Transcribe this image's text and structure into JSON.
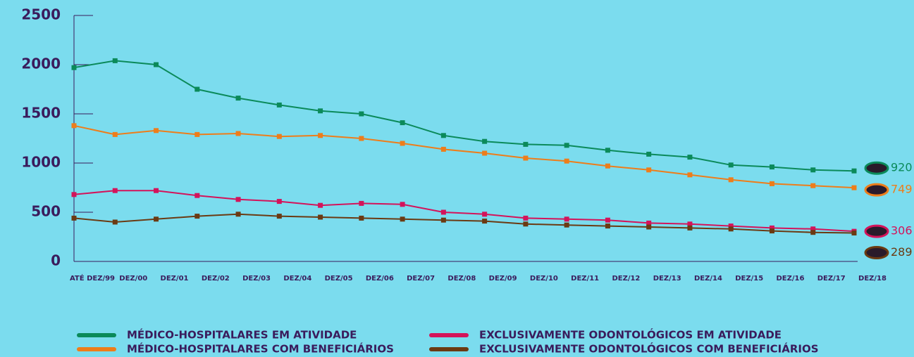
{
  "chart_data": {
    "type": "line",
    "categories": [
      "ATÉ DEZ/99",
      "DEZ/00",
      "DEZ/01",
      "DEZ/02",
      "DEZ/03",
      "DEZ/04",
      "DEZ/05",
      "DEZ/06",
      "DEZ/07",
      "DEZ/08",
      "DEZ/09",
      "DEZ/10",
      "DEZ/11",
      "DEZ/12",
      "DEZ/13",
      "DEZ/14",
      "DEZ/15",
      "DEZ/16",
      "DEZ/17",
      "DEZ/18"
    ],
    "series": [
      {
        "name": "MÉDICO-HOSPITALARES EM ATIVIDADE",
        "color": "#0b8a5a",
        "values": [
          1970,
          2040,
          2000,
          1750,
          1660,
          1590,
          1530,
          1500,
          1410,
          1280,
          1220,
          1190,
          1180,
          1130,
          1090,
          1060,
          980,
          960,
          930,
          920
        ]
      },
      {
        "name": "MÉDICO-HOSPITALARES COM BENEFICIÁRIOS",
        "color": "#ee7d1a",
        "values": [
          1380,
          1290,
          1330,
          1290,
          1300,
          1270,
          1280,
          1250,
          1200,
          1140,
          1100,
          1050,
          1020,
          970,
          930,
          880,
          830,
          790,
          770,
          749
        ]
      },
      {
        "name": "EXCLUSIVAMENTE ODONTOLÓGICOS EM ATIVIDADE",
        "color": "#d4135a",
        "values": [
          680,
          720,
          720,
          670,
          630,
          610,
          570,
          590,
          580,
          500,
          480,
          440,
          430,
          420,
          390,
          380,
          360,
          340,
          330,
          306
        ]
      },
      {
        "name": "EXCLUSIVAMENTE ODONTOLÓGICOS COM BENEFICIÁRIOS",
        "color": "#6b3a12",
        "values": [
          440,
          400,
          430,
          460,
          480,
          460,
          450,
          440,
          430,
          420,
          410,
          380,
          370,
          360,
          350,
          340,
          330,
          310,
          295,
          289
        ]
      }
    ],
    "ylim": [
      0,
      2500
    ],
    "yticks": [
      0,
      500,
      1000,
      1500,
      2000,
      2500
    ]
  }
}
